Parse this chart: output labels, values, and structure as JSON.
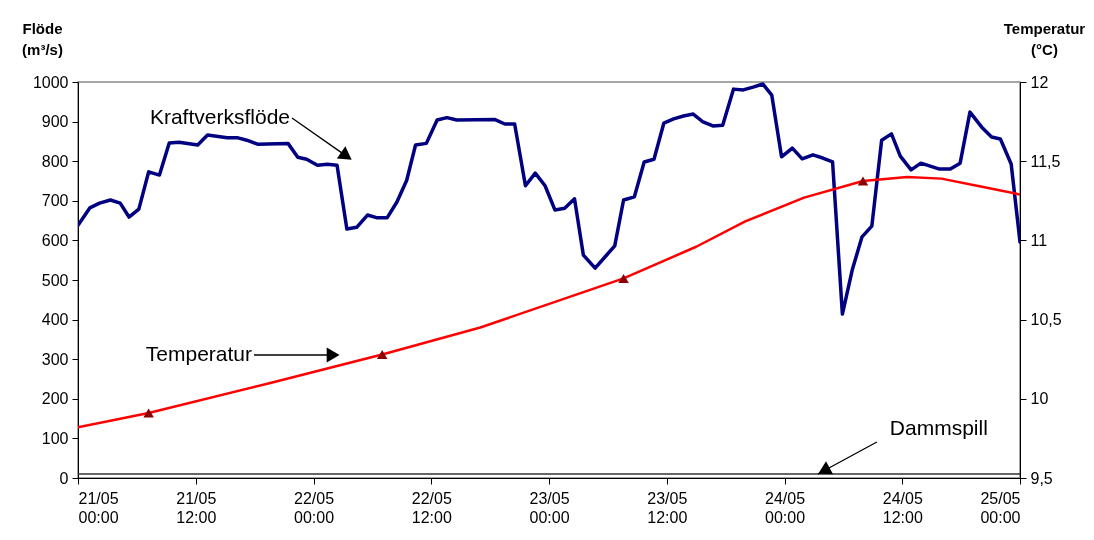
{
  "chart_data": {
    "type": "line",
    "ylabel": "Flöde (m³/s)",
    "y2label": "Temperatur (°C)",
    "xlim": [
      "--05-21T00:00",
      "--05-25T00:00"
    ],
    "xticks": [
      {
        "value": "--05-21T00:00",
        "label": "21/05 00:00"
      },
      {
        "value": "--05-21T12:00",
        "label": "21/05 12:00"
      },
      {
        "value": "--05-22T00:00",
        "label": "22/05 00:00"
      },
      {
        "value": "--05-22T12:00",
        "label": "22/05 12:00"
      },
      {
        "value": "--05-23T00:00",
        "label": "23/05 00:00"
      },
      {
        "value": "--05-23T12:00",
        "label": "23/05 12:00"
      },
      {
        "value": "--05-24T00:00",
        "label": "24/05 00:00"
      },
      {
        "value": "--05-24T12:00",
        "label": "24/05 12:00"
      },
      {
        "value": "--05-25T00:00",
        "label": "25/05 00:00"
      }
    ],
    "ylim": [
      0,
      1000
    ],
    "yticks": [
      0,
      100,
      200,
      300,
      400,
      500,
      600,
      700,
      800,
      900,
      1000
    ],
    "y2lim": [
      9.5,
      12
    ],
    "y2ticks": [
      {
        "value": 9.5,
        "label": "9,5"
      },
      10,
      {
        "value": 10.5,
        "label": "10,5"
      },
      11,
      {
        "value": 11.5,
        "label": "11,5"
      },
      12
    ],
    "series": [
      {
        "type": "line",
        "color": "#000080",
        "x": [
          "--05-21T00:00",
          "--05-21T01:12",
          "--05-21T02:12",
          "--05-21T03:18",
          "--05-21T04:18",
          "--05-21T05:12",
          "--05-21T06:12",
          "--05-21T07:12",
          "--05-21T08:18",
          "--05-21T09:18",
          "--05-21T10:18",
          "--05-21T12:12",
          "--05-21T13:12",
          "--05-21T15:12",
          "--05-21T16:18",
          "--05-21T17:12",
          "--05-21T18:18",
          "--05-21T21:24",
          "--05-21T22:24",
          "--05-21T23:18",
          "--05-22T00:24",
          "--05-22T01:24",
          "--05-22T02:24",
          "--05-22T03:24",
          "--05-22T04:24",
          "--05-22T05:30",
          "--05-22T06:30",
          "--05-22T07:30",
          "--05-22T08:30",
          "--05-22T09:30",
          "--05-22T10:24",
          "--05-22T11:30",
          "--05-22T12:36",
          "--05-22T13:36",
          "--05-22T14:36",
          "--05-22T18:30",
          "--05-22T19:30",
          "--05-22T20:30",
          "--05-22T21:36",
          "--05-22T22:36",
          "--05-22T23:36",
          "--05-23T00:36",
          "--05-23T01:36",
          "--05-23T02:36",
          "--05-23T03:30",
          "--05-23T04:42",
          "--05-23T05:42",
          "--05-23T06:42",
          "--05-23T07:36",
          "--05-23T08:42",
          "--05-23T09:42",
          "--05-23T10:42",
          "--05-23T11:42",
          "--05-23T12:42",
          "--05-23T13:42",
          "--05-23T14:42",
          "--05-23T15:42",
          "--05-23T16:42",
          "--05-23T17:42",
          "--05-23T18:48",
          "--05-23T19:48",
          "--05-23T20:48",
          "--05-23T21:48",
          "--05-23T22:42",
          "--05-23T23:42",
          "--05-24T00:48",
          "--05-24T01:48",
          "--05-24T02:54",
          "--05-24T03:54",
          "--05-24T04:54",
          "--05-24T05:54",
          "--05-24T06:54",
          "--05-24T07:54",
          "--05-24T08:54",
          "--05-24T09:54",
          "--05-24T10:54",
          "--05-24T11:48",
          "--05-24T12:54",
          "--05-24T13:54",
          "--05-24T15:48",
          "--05-24T16:54",
          "--05-24T17:54",
          "--05-24T18:54",
          "--05-24T20:06",
          "--05-24T21:06",
          "--05-24T22:00",
          "--05-24T23:06",
          "--05-25T00:00"
        ],
        "values": [
          638,
          682,
          694,
          702,
          694,
          659,
          679,
          773,
          765,
          846,
          848,
          841,
          866,
          859,
          859,
          853,
          843,
          845,
          810,
          805,
          790,
          792,
          790,
          629,
          633,
          664,
          657,
          657,
          697,
          752,
          841,
          845,
          904,
          910,
          904,
          905,
          894,
          894,
          738,
          770,
          738,
          677,
          681,
          705,
          563,
          530,
          558,
          586,
          702,
          710,
          798,
          805,
          896,
          907,
          914,
          919,
          899,
          889,
          891,
          982,
          980,
          987,
          995,
          967,
          811,
          833,
          806,
          816,
          808,
          798,
          414,
          525,
          609,
          636,
          853,
          869,
          813,
          778,
          795,
          780,
          780,
          795,
          924,
          886,
          861,
          856,
          793,
          596
        ]
      },
      {
        "type": "line",
        "color": "#333333",
        "x": [
          "--05-21T00:00",
          "--05-25T00:00"
        ],
        "values": [
          10,
          10
        ]
      },
      {
        "type": "line",
        "axis": "y2",
        "color": "#ff0000",
        "x": [
          "--05-21T00:00",
          "--05-21T07:12",
          "--05-21T19:36",
          "--05-22T07:00",
          "--05-22T17:00",
          "--05-23T07:36",
          "--05-23T15:00",
          "--05-23T20:00",
          "--05-24T02:00",
          "--05-24T08:00",
          "--05-24T12:30",
          "--05-24T16:00",
          "--05-24T20:00",
          "--05-25T00:00"
        ],
        "values": [
          9.82,
          9.91,
          10.1,
          10.28,
          10.45,
          10.76,
          10.96,
          11.12,
          11.27,
          11.375,
          11.4,
          11.39,
          11.34,
          11.29
        ]
      },
      {
        "type": "scatter",
        "axis": "y2",
        "color": "#8b0000",
        "marker": "triangle",
        "x": [
          "--05-21T07:12",
          "--05-22T07:00",
          "--05-23T07:36",
          "--05-24T08:00"
        ],
        "values": [
          9.91,
          10.28,
          10.76,
          11.375
        ]
      }
    ],
    "annotations": [
      "Kraftverksflöde",
      "Temperatur",
      {
        "text": "Dammspill",
        "x": "--05-24T03:24",
        "y": 10
      }
    ]
  }
}
